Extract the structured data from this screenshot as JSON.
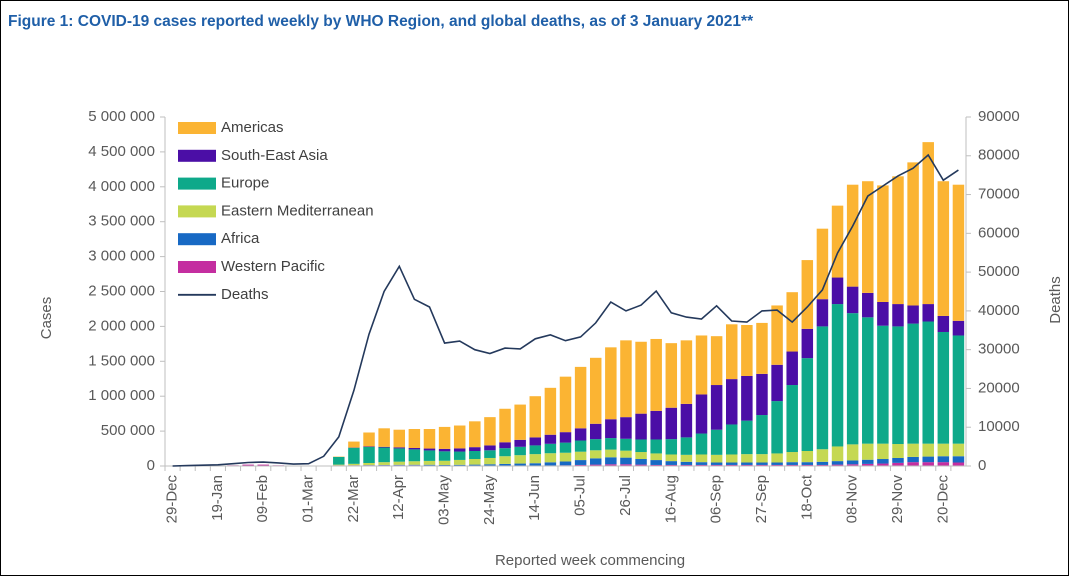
{
  "chart_data": {
    "type": "bar",
    "title": "Figure 1: COVID-19 cases reported weekly by WHO Region, and global deaths, as of 3 January 2021**",
    "xlabel": "Reported week commencing",
    "ylabel": "Cases",
    "y2label": "Deaths",
    "stacked": true,
    "legend": "upper left",
    "categories": [
      "29-Dec",
      null,
      null,
      "19-Jan",
      null,
      null,
      "09-Feb",
      null,
      null,
      "01-Mar",
      null,
      null,
      "22-Mar",
      null,
      null,
      "12-Apr",
      null,
      null,
      "03-May",
      null,
      null,
      "24-May",
      null,
      null,
      "14-Jun",
      null,
      null,
      "05-Jul",
      null,
      null,
      "26-Jul",
      null,
      null,
      "16-Aug",
      null,
      null,
      "06-Sep",
      null,
      null,
      "27-Sep",
      null,
      null,
      "18-Oct",
      null,
      null,
      "08-Nov",
      null,
      null,
      "29-Nov",
      null,
      null,
      "20-Dec",
      null
    ],
    "ylim": [
      0,
      5000000
    ],
    "yticks": [
      0,
      {
        "value": 500000,
        "label": "500 000"
      },
      {
        "value": 1000000,
        "label": "1 000 000"
      },
      {
        "value": 1500000,
        "label": "1 500 000"
      },
      {
        "value": 2000000,
        "label": "2 000 000"
      },
      {
        "value": 2500000,
        "label": "2 500 000"
      },
      {
        "value": 3000000,
        "label": "3 000 000"
      },
      {
        "value": 3500000,
        "label": "3 500 000"
      },
      {
        "value": 4000000,
        "label": "4 000 000"
      },
      {
        "value": 4500000,
        "label": "4 500 000"
      },
      {
        "value": 5000000,
        "label": "5 000 000"
      }
    ],
    "y2lim": [
      0,
      90000
    ],
    "y2ticks": [
      0,
      10000,
      20000,
      30000,
      40000,
      50000,
      60000,
      70000,
      80000,
      90000
    ],
    "series": [
      {
        "name": "Americas",
        "color": "#fbb433",
        "values": [
          0,
          0,
          0,
          0,
          0,
          0,
          0,
          0,
          0,
          0,
          0,
          5000,
          86000,
          200000,
          265000,
          253000,
          272000,
          280000,
          315000,
          328000,
          370000,
          405000,
          480000,
          505000,
          590000,
          672000,
          795000,
          880000,
          945000,
          1030000,
          1100000,
          1030000,
          1030000,
          925000,
          910000,
          845000,
          700000,
          785000,
          730000,
          730000,
          850000,
          850000,
          985000,
          1010000,
          1030000,
          1460000,
          1600000,
          1670000,
          1830000,
          2050000,
          2320000,
          1930000,
          1950000
        ]
      },
      {
        "name": "South-East Asia",
        "color": "#4b0ea6",
        "values": [
          0,
          0,
          0,
          0,
          0,
          0,
          0,
          0,
          0,
          0,
          0,
          0,
          3000,
          7000,
          10000,
          15000,
          20000,
          27000,
          35000,
          45000,
          55000,
          70000,
          85000,
          100000,
          115000,
          130000,
          150000,
          175000,
          220000,
          270000,
          310000,
          370000,
          410000,
          450000,
          480000,
          560000,
          640000,
          650000,
          640000,
          590000,
          520000,
          480000,
          420000,
          390000,
          380000,
          380000,
          350000,
          340000,
          320000,
          260000,
          250000,
          230000,
          210000
        ]
      },
      {
        "name": "Europe",
        "color": "#0ea98a",
        "values": [
          0,
          0,
          0,
          0,
          0,
          0,
          0,
          0,
          0,
          0,
          0,
          110000,
          230000,
          230000,
          210000,
          190000,
          170000,
          150000,
          135000,
          120000,
          115000,
          110000,
          115000,
          120000,
          125000,
          135000,
          145000,
          160000,
          160000,
          165000,
          170000,
          180000,
          200000,
          220000,
          250000,
          300000,
          360000,
          430000,
          480000,
          560000,
          750000,
          960000,
          1330000,
          1760000,
          2040000,
          1880000,
          1810000,
          1690000,
          1685000,
          1720000,
          1750000,
          1600000,
          1550000
        ]
      },
      {
        "name": "Eastern Mediterranean",
        "color": "#c5d852",
        "values": [
          0,
          0,
          0,
          0,
          0,
          0,
          0,
          0,
          0,
          0,
          0,
          10000,
          20000,
          30000,
          40000,
          45000,
          50000,
          55000,
          60000,
          70000,
          80000,
          90000,
          110000,
          120000,
          130000,
          130000,
          125000,
          120000,
          115000,
          110000,
          100000,
          100000,
          95000,
          95000,
          100000,
          110000,
          110000,
          115000,
          120000,
          120000,
          130000,
          145000,
          160000,
          180000,
          210000,
          230000,
          230000,
          220000,
          200000,
          190000,
          185000,
          180000,
          180000
        ]
      },
      {
        "name": "Africa",
        "color": "#1769c4",
        "values": [
          0,
          0,
          0,
          0,
          0,
          0,
          0,
          0,
          0,
          0,
          0,
          0,
          1000,
          3000,
          5000,
          7000,
          8000,
          10000,
          10000,
          12000,
          15000,
          20000,
          25000,
          30000,
          35000,
          45000,
          55000,
          70000,
          90000,
          100000,
          95000,
          80000,
          70000,
          55000,
          45000,
          40000,
          35000,
          35000,
          35000,
          35000,
          35000,
          40000,
          40000,
          45000,
          50000,
          55000,
          60000,
          65000,
          70000,
          75000,
          80000,
          85000,
          90000
        ]
      },
      {
        "name": "Western Pacific",
        "color": "#c42ea0",
        "values": [
          0,
          0,
          0,
          1000,
          10000,
          20000,
          20000,
          10000,
          5000,
          5000,
          7000,
          10000,
          10000,
          10000,
          10000,
          10000,
          10000,
          8000,
          5000,
          5000,
          5000,
          5000,
          5000,
          5000,
          5000,
          8000,
          10000,
          15000,
          20000,
          25000,
          25000,
          20000,
          15000,
          15000,
          15000,
          15000,
          15000,
          15000,
          15000,
          15000,
          15000,
          15000,
          15000,
          15000,
          20000,
          25000,
          30000,
          35000,
          45000,
          55000,
          55000,
          55000,
          50000
        ]
      },
      {
        "name": "Deaths",
        "type": "line",
        "axis": "y2",
        "color": "#24395c",
        "values": [
          0,
          100,
          200,
          300,
          600,
          900,
          1000,
          800,
          500,
          600,
          2500,
          7500,
          19500,
          34000,
          45000,
          51500,
          43000,
          41000,
          31700,
          32200,
          30000,
          29000,
          30400,
          30200,
          32800,
          33800,
          32300,
          33300,
          36900,
          42300,
          40000,
          41500,
          45100,
          39500,
          38400,
          37900,
          41300,
          37400,
          37100,
          40000,
          40200,
          37100,
          41000,
          45400,
          54900,
          61900,
          69600,
          72200,
          74800,
          76800,
          80200,
          73700,
          76300
        ]
      }
    ]
  }
}
